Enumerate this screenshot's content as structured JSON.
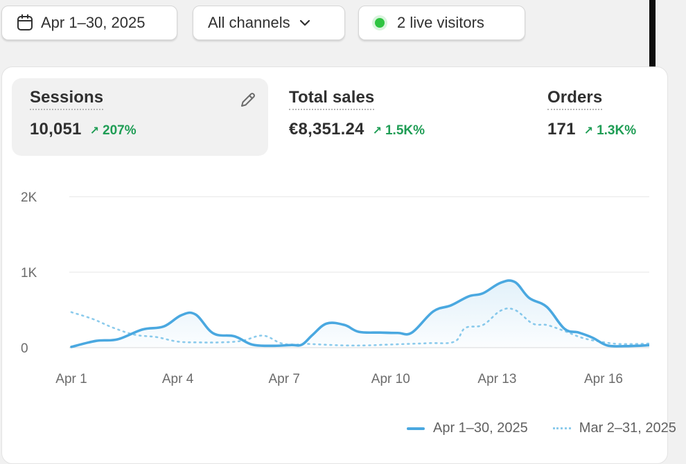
{
  "toolbar": {
    "date_range": "Apr 1–30, 2025",
    "channels": "All channels",
    "live_visitors": "2 live visitors"
  },
  "metrics": [
    {
      "title": "Sessions",
      "value": "10,051",
      "change": "207%",
      "selected": true
    },
    {
      "title": "Total sales",
      "value": "€8,351.24",
      "change": "1.5K%"
    },
    {
      "title": "Orders",
      "value": "171",
      "change": "1.3K%"
    }
  ],
  "colors": {
    "primary_series": "#4aa8e0",
    "comparison_series": "#8ccbec",
    "positive_change": "#1f9d55",
    "live_dot": "#2ec441"
  },
  "icons": {
    "date": "calendar-icon",
    "channels": "chevron-down-icon",
    "live": "live-dot-icon",
    "edit": "pencil-icon",
    "change": "arrow-up-right-icon"
  },
  "chart_data": {
    "type": "line",
    "x_ticks": [
      "Apr 1",
      "Apr 4",
      "Apr 7",
      "Apr 10",
      "Apr 13",
      "Apr 16"
    ],
    "y_ticks": [
      "0",
      "1K",
      "2K"
    ],
    "ylim": [
      0,
      2000
    ],
    "grid": true,
    "legend_position": "bottom-right",
    "series": [
      {
        "name": "Apr 1–30, 2025",
        "style": "solid",
        "points": [
          [
            1,
            10
          ],
          [
            1.7,
            90
          ],
          [
            2.3,
            110
          ],
          [
            3,
            240
          ],
          [
            3.6,
            280
          ],
          [
            4.1,
            430
          ],
          [
            4.5,
            440
          ],
          [
            5,
            190
          ],
          [
            5.6,
            150
          ],
          [
            6.1,
            40
          ],
          [
            6.7,
            25
          ],
          [
            7.2,
            35
          ],
          [
            7.5,
            40
          ],
          [
            7.8,
            170
          ],
          [
            8.2,
            320
          ],
          [
            8.7,
            300
          ],
          [
            9.1,
            210
          ],
          [
            9.7,
            200
          ],
          [
            10.2,
            195
          ],
          [
            10.6,
            200
          ],
          [
            11.2,
            480
          ],
          [
            11.7,
            560
          ],
          [
            12.2,
            680
          ],
          [
            12.6,
            720
          ],
          [
            13.1,
            860
          ],
          [
            13.5,
            870
          ],
          [
            13.9,
            660
          ],
          [
            14.4,
            540
          ],
          [
            14.9,
            250
          ],
          [
            15.3,
            200
          ],
          [
            15.7,
            130
          ],
          [
            16.1,
            30
          ],
          [
            16.6,
            20
          ],
          [
            17.2,
            30
          ],
          [
            17.5,
            40
          ]
        ]
      },
      {
        "name": "Mar 2–31, 2025",
        "style": "dotted",
        "points": [
          [
            1,
            470
          ],
          [
            1.6,
            380
          ],
          [
            2.2,
            260
          ],
          [
            2.8,
            170
          ],
          [
            3.4,
            140
          ],
          [
            4,
            80
          ],
          [
            4.6,
            70
          ],
          [
            5.2,
            70
          ],
          [
            5.8,
            90
          ],
          [
            6.4,
            160
          ],
          [
            6.9,
            60
          ],
          [
            7.3,
            40
          ],
          [
            7.6,
            50
          ],
          [
            8.1,
            40
          ],
          [
            8.7,
            30
          ],
          [
            9.3,
            30
          ],
          [
            9.9,
            40
          ],
          [
            10.5,
            50
          ],
          [
            11.1,
            60
          ],
          [
            11.8,
            80
          ],
          [
            12.1,
            260
          ],
          [
            12.6,
            300
          ],
          [
            13.1,
            490
          ],
          [
            13.5,
            500
          ],
          [
            14,
            320
          ],
          [
            14.4,
            300
          ],
          [
            14.9,
            220
          ],
          [
            15.4,
            130
          ],
          [
            15.9,
            80
          ],
          [
            16.4,
            50
          ],
          [
            17,
            50
          ],
          [
            17.5,
            60
          ]
        ]
      }
    ]
  }
}
